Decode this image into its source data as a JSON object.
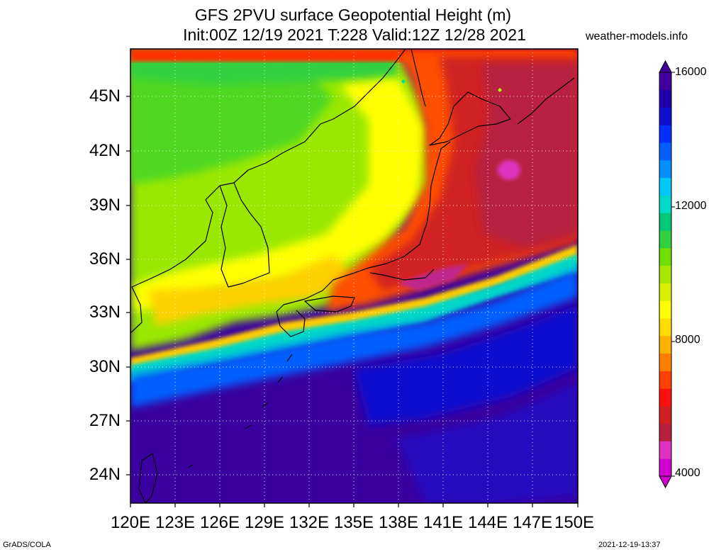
{
  "header": {
    "title_line1": "GFS 2PVU surface Geopotential Height (m)",
    "title_line2": "Init:00Z 12/19 2021 T:228 Valid:12Z 12/28 2021",
    "site": "weather-models.info"
  },
  "map": {
    "region": "Japan / East Asia",
    "lat_labels": [
      "45N",
      "42N",
      "39N",
      "36N",
      "33N",
      "30N",
      "27N",
      "24N"
    ],
    "lon_labels": [
      "120E",
      "123E",
      "126E",
      "129E",
      "132E",
      "135E",
      "138E",
      "141E",
      "144E",
      "147E",
      "150E"
    ]
  },
  "colorbar": {
    "labels": [
      "16000",
      "12000",
      "8000",
      "4000"
    ],
    "colors": [
      "#d000d0",
      "#e030c0",
      "#b82040",
      "#d02020",
      "#ff1010",
      "#ff4000",
      "#ff8000",
      "#ffb000",
      "#ffdd00",
      "#ffff00",
      "#d8f000",
      "#a8e800",
      "#70e000",
      "#30d040",
      "#00c878",
      "#00d8c8",
      "#00c8ff",
      "#0090ff",
      "#0060ff",
      "#0030ff",
      "#1010d0",
      "#2000a8",
      "#4000a0"
    ]
  },
  "footer": {
    "left": "GrADS/COLA",
    "right": "2021-12-19-13:37"
  }
}
